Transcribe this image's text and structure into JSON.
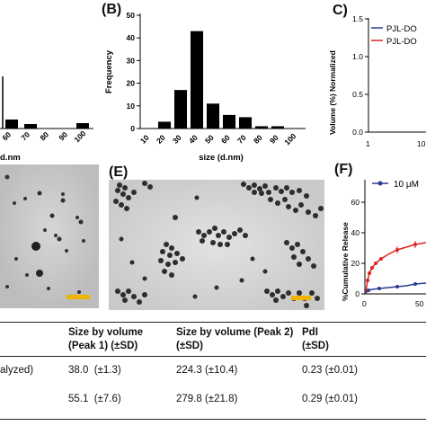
{
  "panels": {
    "A": {
      "letter": "",
      "axis_title": "d.nm",
      "ticks": [
        "60",
        "70",
        "80",
        "90",
        "100"
      ]
    },
    "B": {
      "letter": "(B)",
      "chart_data": {
        "type": "bar",
        "categories": [
          "10",
          "20",
          "30",
          "40",
          "50",
          "60",
          "70",
          "80",
          "90",
          "100"
        ],
        "values": [
          0,
          3,
          17,
          43,
          11,
          6,
          5,
          1,
          1,
          0
        ],
        "xlabel": "size (d.nm)",
        "ylabel": "Frequency",
        "ylim": [
          0,
          50
        ],
        "yticks": [
          "0",
          "10",
          "20",
          "30",
          "40",
          "50"
        ]
      }
    },
    "C": {
      "letter": "C)",
      "ylabel": "Volume (%) Normalized",
      "yticks": [
        "0.0",
        "0.5",
        "1.0",
        "1.5"
      ],
      "xticks": [
        "1",
        "10"
      ],
      "legend": [
        {
          "label": "PJL-DO",
          "color": "#2a3b8f"
        },
        {
          "label": "PJL-DO",
          "color": "#e0231f"
        }
      ]
    },
    "D": {
      "letter": ""
    },
    "E": {
      "letter": "(E)"
    },
    "F": {
      "letter": "(F)",
      "ylabel": "%Cumulative Release",
      "yticks": [
        "0",
        "20",
        "40",
        "60"
      ],
      "xticks": [
        "0",
        "50"
      ],
      "legend_label": "10 μM",
      "colors": {
        "blue": "#2a3b8f",
        "red": "#e0231f"
      }
    }
  },
  "table": {
    "headers": [
      "Size by volume\n(Peak 1) (±SD)",
      "Size by volume (Peak 2)\n(±SD)",
      "PdI\n(±SD)"
    ],
    "rows": [
      {
        "label": "alyzed)",
        "peak1": "38.0  (±1.3)",
        "peak2": "224.3 (±10.4)",
        "pdi": "0.23 (±0.01)"
      },
      {
        "label": "",
        "peak1": "55.1  (±7.6)",
        "peak2": "279.8 (±21.8)",
        "pdi": "0.29 (±0.01)"
      }
    ]
  },
  "scale_bar_color": "#f0b400"
}
